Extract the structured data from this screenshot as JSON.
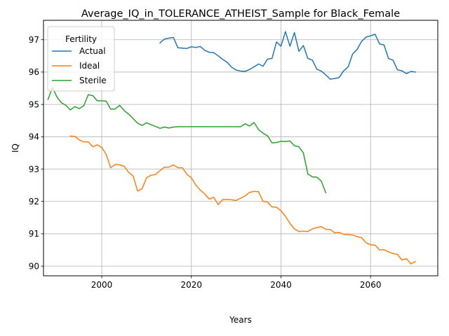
{
  "chart_data": {
    "type": "line",
    "title": "Average_IQ_in_TOLERANCE_ATHEIST_Sample for Black_Female",
    "xlabel": "Years",
    "ylabel": "IQ",
    "xlim": [
      1987,
      2075
    ],
    "ylim": [
      89.7,
      97.6
    ],
    "xticks": [
      2000,
      2020,
      2040,
      2060
    ],
    "yticks": [
      90,
      91,
      92,
      93,
      94,
      95,
      96,
      97
    ],
    "grid": true,
    "legend": {
      "title": "Fertility",
      "placement": "top-left"
    },
    "series": [
      {
        "name": "Actual",
        "color": "#1f77b4",
        "x": [
          2013,
          2014,
          2015,
          2016,
          2017,
          2018,
          2019,
          2020,
          2021,
          2022,
          2023,
          2024,
          2025,
          2026,
          2027,
          2028,
          2029,
          2030,
          2031,
          2032,
          2033,
          2034,
          2035,
          2036,
          2037,
          2038,
          2039,
          2040,
          2041,
          2042,
          2043,
          2044,
          2045,
          2046,
          2047,
          2048,
          2049,
          2050,
          2051,
          2052,
          2053,
          2054,
          2055,
          2056,
          2057,
          2058,
          2059,
          2060,
          2061,
          2062,
          2063,
          2064,
          2065,
          2066,
          2067,
          2068,
          2069,
          2070
        ],
        "y": [
          96.9,
          97.02,
          97.05,
          97.07,
          96.75,
          96.74,
          96.73,
          96.78,
          96.76,
          96.79,
          96.67,
          96.61,
          96.6,
          96.5,
          96.39,
          96.3,
          96.15,
          96.06,
          96.03,
          96.02,
          96.08,
          96.16,
          96.25,
          96.18,
          96.4,
          96.42,
          96.93,
          96.8,
          97.25,
          96.8,
          97.22,
          96.64,
          96.82,
          96.42,
          96.37,
          96.09,
          96.03,
          95.91,
          95.78,
          95.8,
          95.83,
          96.04,
          96.16,
          96.56,
          96.7,
          96.95,
          97.08,
          97.12,
          97.17,
          96.87,
          96.84,
          96.42,
          96.37,
          96.07,
          96.04,
          95.95,
          96.02,
          96.0
        ]
      },
      {
        "name": "Ideal",
        "color": "#ff7f0e",
        "x": [
          1993,
          1994,
          1995,
          1996,
          1997,
          1998,
          1999,
          2000,
          2001,
          2002,
          2003,
          2004,
          2005,
          2006,
          2007,
          2008,
          2009,
          2010,
          2011,
          2012,
          2013,
          2014,
          2015,
          2016,
          2017,
          2018,
          2019,
          2020,
          2021,
          2022,
          2023,
          2024,
          2025,
          2026,
          2027,
          2028,
          2029,
          2030,
          2031,
          2032,
          2033,
          2034,
          2035,
          2036,
          2037,
          2038,
          2039,
          2040,
          2041,
          2042,
          2043,
          2044,
          2045,
          2046,
          2047,
          2048,
          2049,
          2050,
          2051,
          2052,
          2053,
          2054,
          2055,
          2056,
          2057,
          2058,
          2059,
          2060,
          2061,
          2062,
          2063,
          2064,
          2065,
          2066,
          2067,
          2068,
          2069,
          2070
        ],
        "y": [
          94.02,
          94.01,
          93.9,
          93.84,
          93.84,
          93.69,
          93.75,
          93.67,
          93.45,
          93.04,
          93.14,
          93.13,
          93.09,
          92.9,
          92.79,
          92.32,
          92.39,
          92.73,
          92.81,
          92.83,
          92.95,
          93.06,
          93.06,
          93.13,
          93.04,
          93.04,
          92.84,
          92.73,
          92.5,
          92.35,
          92.23,
          92.07,
          92.13,
          91.9,
          92.06,
          92.06,
          92.05,
          92.03,
          92.1,
          92.17,
          92.28,
          92.31,
          92.3,
          92.0,
          91.98,
          91.83,
          91.82,
          91.71,
          91.54,
          91.32,
          91.15,
          91.07,
          91.08,
          91.07,
          91.15,
          91.19,
          91.22,
          91.14,
          91.13,
          91.03,
          91.04,
          90.98,
          90.97,
          90.96,
          90.91,
          90.88,
          90.72,
          90.66,
          90.65,
          90.5,
          90.51,
          90.44,
          90.39,
          90.36,
          90.19,
          90.23,
          90.07,
          90.14
        ]
      },
      {
        "name": "Sterile",
        "color": "#2ca02c",
        "x": [
          1988,
          1989,
          1990,
          1991,
          1992,
          1993,
          1994,
          1995,
          1996,
          1997,
          1998,
          1999,
          2000,
          2001,
          2002,
          2003,
          2004,
          2005,
          2006,
          2007,
          2008,
          2009,
          2010,
          2011,
          2012,
          2013,
          2014,
          2015,
          2016,
          2017,
          2018,
          2019,
          2020,
          2021,
          2022,
          2023,
          2024,
          2025,
          2026,
          2027,
          2028,
          2029,
          2030,
          2031,
          2032,
          2033,
          2034,
          2035,
          2036,
          2037,
          2038,
          2039,
          2040,
          2041,
          2042,
          2043,
          2044,
          2045,
          2046,
          2047,
          2048,
          2049,
          2050
        ],
        "y": [
          95.15,
          95.52,
          95.23,
          95.05,
          94.97,
          94.83,
          94.93,
          94.87,
          94.96,
          95.3,
          95.27,
          95.11,
          95.11,
          95.1,
          94.85,
          94.86,
          94.97,
          94.81,
          94.7,
          94.56,
          94.42,
          94.35,
          94.43,
          94.37,
          94.32,
          94.26,
          94.3,
          94.27,
          94.3,
          94.31,
          94.31,
          94.31,
          94.31,
          94.31,
          94.31,
          94.31,
          94.31,
          94.31,
          94.31,
          94.31,
          94.31,
          94.31,
          94.31,
          94.31,
          94.4,
          94.33,
          94.44,
          94.22,
          94.11,
          94.03,
          93.81,
          93.82,
          93.86,
          93.85,
          93.87,
          93.72,
          93.69,
          93.5,
          92.85,
          92.76,
          92.75,
          92.63,
          92.27
        ]
      }
    ]
  }
}
